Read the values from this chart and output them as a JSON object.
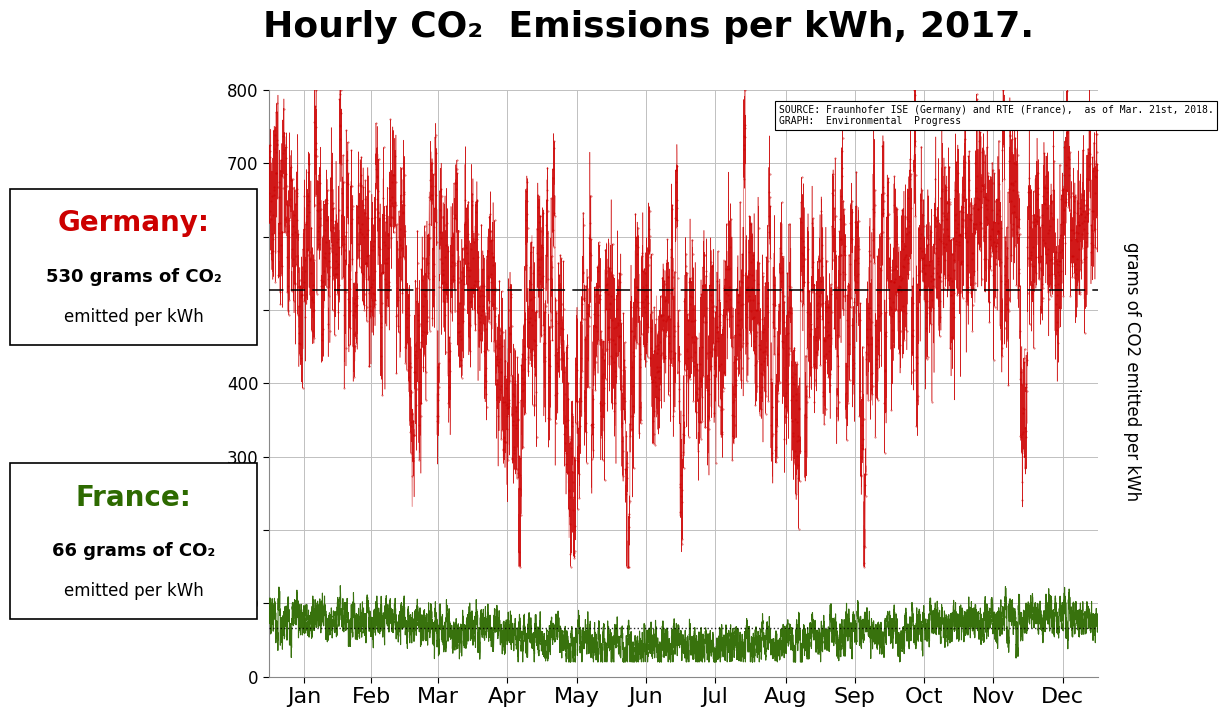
{
  "title": "Hourly CO₂  Emissions per kWh, 2017.",
  "ylabel_right": "grams of CO2 emitted per kWh",
  "source_text": "SOURCE: Fraunhofer ISE (Germany) and RTE (France),  as of Mar. 21st, 2018.\nGRAPH:  Environmental  Progress",
  "germany_mean": 530,
  "france_mean": 66,
  "germany_color": "#cc0000",
  "france_color": "#2d6a00",
  "dashed_line_germany": 527,
  "dotted_line_france": 66,
  "ylim": [
    0,
    800
  ],
  "yticks": [
    0,
    100,
    200,
    300,
    400,
    500,
    600,
    700,
    800
  ],
  "months": [
    "Jan",
    "Feb",
    "Mar",
    "Apr",
    "May",
    "Jun",
    "Jul",
    "Aug",
    "Sep",
    "Oct",
    "Nov",
    "Dec"
  ],
  "background_color": "#ffffff",
  "germany_label": "Germany:",
  "germany_sub1": "530 grams of CO₂",
  "germany_sub2": "emitted per kWh",
  "france_label": "France:",
  "france_sub1": "66 grams of CO₂",
  "france_sub2": "emitted per kWh",
  "seed": 42
}
